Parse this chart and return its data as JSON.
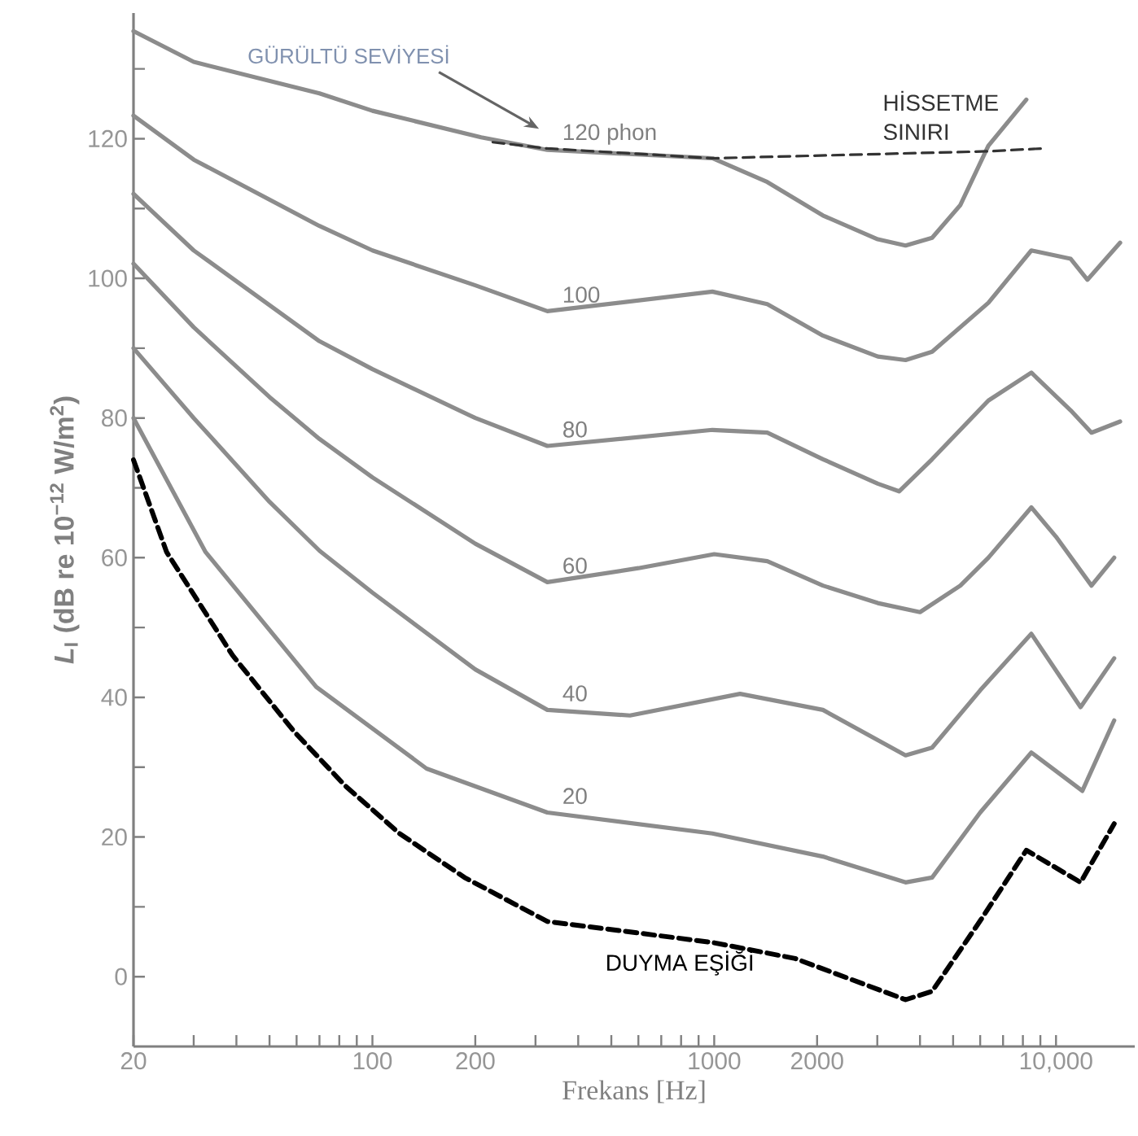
{
  "chart_data": {
    "type": "line",
    "xlabel": "Frekans [Hz]",
    "ylabel": "*L*$_{I}$ (dB re 10$^{−12}$ W/m$^{2}$)",
    "log": "x",
    "grid": false,
    "legend": false,
    "xlim": [
      20,
      17000
    ],
    "ylim": [
      -10,
      138
    ],
    "xticks": [
      20,
      {
        "value": 30,
        "label": null
      },
      {
        "value": 40,
        "label": null
      },
      {
        "value": 50,
        "label": null
      },
      {
        "value": 60,
        "label": null
      },
      {
        "value": 70,
        "label": null
      },
      {
        "value": 80,
        "label": null
      },
      {
        "value": 90,
        "label": null
      },
      100,
      200,
      {
        "value": 300,
        "label": null
      },
      {
        "value": 400,
        "label": null
      },
      {
        "value": 500,
        "label": null
      },
      {
        "value": 600,
        "label": null
      },
      {
        "value": 700,
        "label": null
      },
      {
        "value": 800,
        "label": null
      },
      {
        "value": 900,
        "label": null
      },
      1000,
      2000,
      {
        "value": 3000,
        "label": null
      },
      {
        "value": 4000,
        "label": null
      },
      {
        "value": 5000,
        "label": null
      },
      {
        "value": 6000,
        "label": null
      },
      {
        "value": 7000,
        "label": null
      },
      {
        "value": 8000,
        "label": null
      },
      {
        "value": 9000,
        "label": null
      },
      {
        "value": 10000,
        "label": "10,000"
      }
    ],
    "yticks": [
      0,
      {
        "value": 10,
        "label": null
      },
      20,
      {
        "value": 30,
        "label": null
      },
      40,
      {
        "value": 50,
        "label": null
      },
      60,
      {
        "value": 70,
        "label": null
      },
      80,
      {
        "value": 90,
        "label": null
      },
      100,
      {
        "value": 110,
        "label": null
      },
      120,
      {
        "value": 130,
        "label": null
      }
    ],
    "annotations": [
      "GÜRÜLTÜ SEVİYESİ"
    ],
    "series": [
      {
        "name": "120 phon",
        "color": "#8c8c8c",
        "line_style": "solid",
        "x": [
          20,
          30,
          70,
          100,
          208,
          325,
          988,
          1430,
          2080,
          3010,
          3630,
          4340,
          5250,
          6340,
          8190
        ],
        "values": [
          135.4,
          131,
          126.5,
          124,
          120.2,
          118.4,
          117.2,
          113.8,
          109,
          105.6,
          104.7,
          105.8,
          110.5,
          119,
          125.6
        ]
      },
      {
        "name": "100",
        "color": "#8c8c8c",
        "line_style": "solid",
        "x": [
          20,
          30,
          70,
          100,
          200,
          325,
          988,
          1430,
          2080,
          3010,
          3630,
          4340,
          6340,
          8470,
          11040,
          12360,
          15400
        ],
        "values": [
          123.3,
          117,
          107.5,
          104,
          99,
          95.3,
          98.1,
          96.3,
          91.8,
          88.8,
          88.3,
          89.5,
          96.5,
          104,
          102.8,
          99.8,
          105.1
        ]
      },
      {
        "name": "80",
        "color": "#8c8c8c",
        "line_style": "solid",
        "x": [
          20,
          30,
          70,
          100,
          200,
          325,
          988,
          1430,
          2080,
          3010,
          3475,
          4340,
          6340,
          8470,
          11040,
          12700,
          15400
        ],
        "values": [
          112.1,
          104,
          91,
          87,
          80,
          76,
          78.3,
          77.9,
          74.1,
          70.6,
          69.5,
          74.1,
          82.5,
          86.5,
          81.1,
          77.9,
          79.5
        ]
      },
      {
        "name": "60",
        "color": "#8c8c8c",
        "line_style": "solid",
        "x": [
          20,
          30,
          50,
          70,
          100,
          200,
          325,
          600,
          1000,
          1430,
          2080,
          3010,
          4000,
          5250,
          6340,
          8470,
          10000,
          12700,
          14800
        ],
        "values": [
          102.1,
          93,
          83,
          77,
          71.5,
          62,
          56.5,
          58.5,
          60.5,
          59.5,
          56,
          53.5,
          52.2,
          56,
          60,
          67.2,
          63,
          56,
          60
        ]
      },
      {
        "name": "40",
        "color": "#8c8c8c",
        "line_style": "solid",
        "x": [
          20,
          30,
          50,
          70,
          100,
          200,
          325,
          567,
          1190,
          2080,
          3630,
          4340,
          6000,
          8470,
          11800,
          14800
        ],
        "values": [
          90,
          80,
          68,
          61,
          55,
          44,
          38.2,
          37.4,
          40.5,
          38.2,
          31.7,
          32.8,
          41,
          49.1,
          38.6,
          45.6
        ]
      },
      {
        "name": "20",
        "color": "#8c8c8c",
        "line_style": "solid",
        "x": [
          20,
          32.5,
          68.5,
          144,
          325,
          988,
          2080,
          3630,
          4340,
          6000,
          8470,
          11940,
          14800
        ],
        "values": [
          80,
          60.8,
          41.5,
          29.8,
          23.5,
          20.5,
          17.2,
          13.5,
          14.2,
          23.5,
          32.1,
          26.6,
          36.7
        ]
      },
      {
        "name": "DUYMA EŞİĞİ",
        "color": "#000000",
        "line_style": "dashed",
        "x": [
          20,
          25,
          39,
          59,
          83,
          120,
          186,
          325,
          988,
          1725,
          3630,
          4340,
          6000,
          8190,
          11800,
          14800
        ],
        "values": [
          74,
          60.8,
          46,
          35.1,
          27.4,
          20.5,
          14.2,
          7.9,
          4.9,
          2.6,
          -3.3,
          -2.1,
          8,
          18.1,
          13.5,
          21.9
        ]
      },
      {
        "name": "HİSSETME SINIRI",
        "color": "#333333",
        "line_style": "dashed",
        "x": [
          225,
          325,
          988,
          6340,
          9140
        ],
        "values": [
          119.5,
          118.6,
          117.2,
          118.2,
          118.6
        ]
      }
    ]
  }
}
